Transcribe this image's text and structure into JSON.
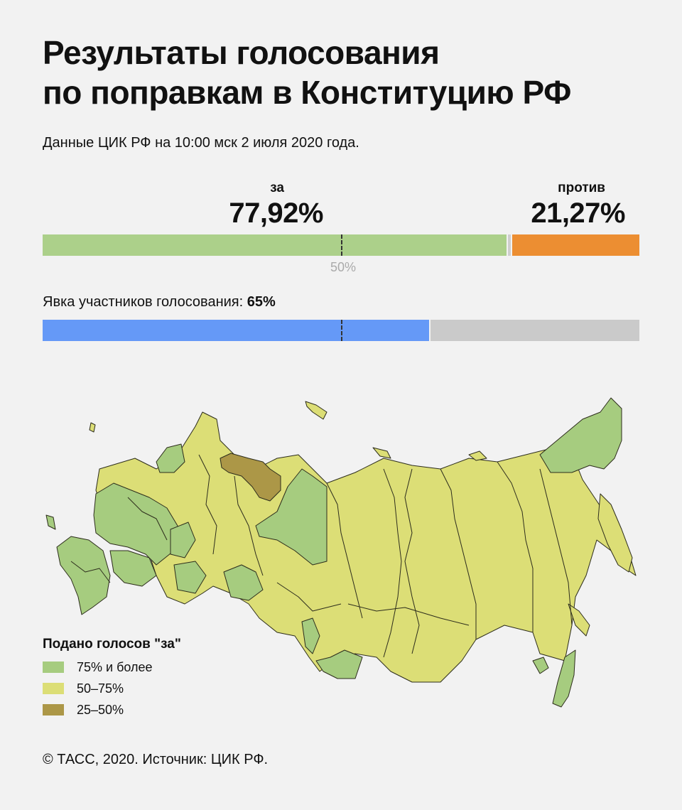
{
  "header": {
    "title_line1": "Результаты голосования",
    "title_line2": "по поправкам в Конституцию РФ",
    "subtitle": "Данные ЦИК РФ на 10:00 мск 2 июля 2020 года."
  },
  "votes": {
    "for_label": "за",
    "for_value": "77,92%",
    "against_label": "против",
    "against_value": "21,27%",
    "midpoint_label": "50%"
  },
  "turnout": {
    "label": "Явка участников голосования: ",
    "value": "65%"
  },
  "legend": {
    "title": "Подано голосов \"за\"",
    "items": [
      {
        "label": "75% и более",
        "color": "#a6cc7f"
      },
      {
        "label": "50–75%",
        "color": "#dcde76"
      },
      {
        "label": "25–50%",
        "color": "#ac9747"
      }
    ]
  },
  "footer": "© ТАСС, 2020. Источник: ЦИК РФ.",
  "chart_data": [
    {
      "type": "bar",
      "orientation": "horizontal-stacked",
      "series": [
        {
          "name": "за",
          "value": 77.92,
          "color": "#acd08a"
        },
        {
          "name": "invalid",
          "value": 0.81,
          "color": "#cfcfcf"
        },
        {
          "name": "против",
          "value": 21.27,
          "color": "#ec8e32"
        }
      ],
      "reference_line": 50,
      "xlim": [
        0,
        100
      ]
    },
    {
      "type": "bar",
      "orientation": "horizontal-stacked",
      "series": [
        {
          "name": "turnout",
          "value": 65,
          "color": "#6599f7"
        },
        {
          "name": "rest",
          "value": 35,
          "color": "#cacaca"
        }
      ],
      "reference_line": 50,
      "xlim": [
        0,
        100
      ]
    }
  ],
  "map": {
    "colors": {
      "high": "#a6cc7f",
      "mid": "#dcde76",
      "low": "#ac9747",
      "border": "#2c2c1c"
    }
  }
}
